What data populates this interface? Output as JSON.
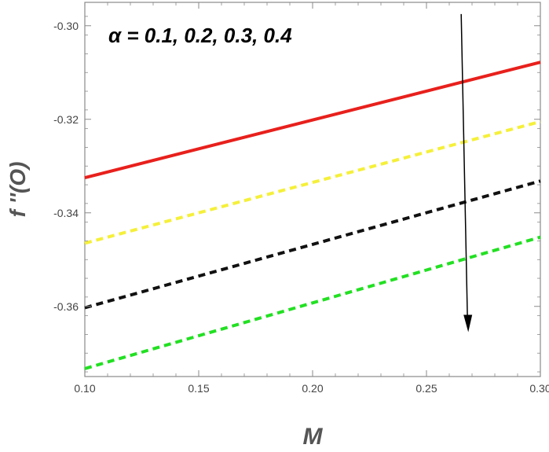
{
  "chart_data": {
    "type": "line",
    "xlabel": "M",
    "ylabel": "f ''(O)",
    "xlim": [
      0.1,
      0.3
    ],
    "ylim": [
      -0.375,
      -0.295
    ],
    "x_ticks": [
      0.1,
      0.15,
      0.2,
      0.25,
      0.3
    ],
    "x_tick_labels": [
      "0.10",
      "0.15",
      "0.20",
      "0.25",
      "0.30"
    ],
    "y_ticks": [
      -0.3,
      -0.32,
      -0.34,
      -0.36
    ],
    "y_tick_labels": [
      "-0.30",
      "-0.32",
      "-0.34",
      "-0.36"
    ],
    "annotation": "α = 0.1, 0.2, 0.3, 0.4",
    "arrow": {
      "x": 0.268,
      "y_from": -0.2975,
      "y_to": -0.3655
    },
    "grid": false,
    "series": [
      {
        "color": "#e8201c",
        "dash": "solid",
        "x": [
          0.1,
          0.3
        ],
        "y": [
          -0.3325,
          -0.3078
        ]
      },
      {
        "color": "#f5f03a",
        "dash": "dashed",
        "x": [
          0.1,
          0.3
        ],
        "y": [
          -0.3465,
          -0.3205
        ]
      },
      {
        "color": "#111111",
        "dash": "dashed",
        "x": [
          0.1,
          0.3
        ],
        "y": [
          -0.3603,
          -0.3332
        ]
      },
      {
        "color": "#22e022",
        "dash": "dashed",
        "x": [
          0.1,
          0.3
        ],
        "y": [
          -0.3733,
          -0.3452
        ]
      }
    ]
  }
}
